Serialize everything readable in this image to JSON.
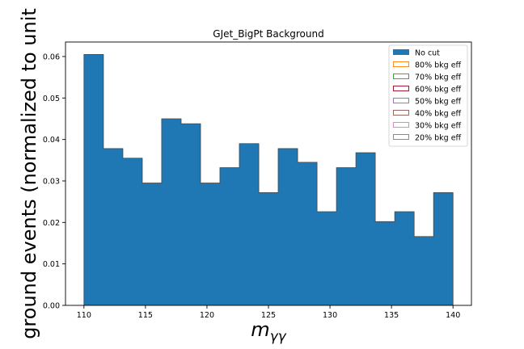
{
  "chart_data": {
    "type": "histogram",
    "title": "GJet_BigPt Background",
    "xlabel": "mγγ",
    "xlabel_parts": {
      "base": "m",
      "subscript": "γγ"
    },
    "ylabel": "ground events (normalized to unit",
    "xlim": [
      108.5,
      141.5
    ],
    "ylim": [
      0,
      0.0635
    ],
    "xticks": [
      110,
      115,
      120,
      125,
      130,
      135,
      140
    ],
    "xtick_labels": [
      "110",
      "115",
      "120",
      "125",
      "130",
      "135",
      "140"
    ],
    "yticks": [
      0.0,
      0.01,
      0.02,
      0.03,
      0.04,
      0.05,
      0.06
    ],
    "ytick_labels": [
      "0.00",
      "0.01",
      "0.02",
      "0.03",
      "0.04",
      "0.05",
      "0.06"
    ],
    "bin_edges": [
      110,
      111.579,
      113.158,
      114.737,
      116.316,
      117.895,
      119.474,
      121.053,
      122.632,
      124.211,
      125.789,
      127.368,
      128.947,
      130.526,
      132.105,
      133.684,
      135.263,
      136.842,
      138.421,
      140
    ],
    "series": [
      {
        "name": "No cut",
        "histtype": "filled",
        "color": "#1f77b4",
        "values": [
          0.0605,
          0.0378,
          0.0355,
          0.0295,
          0.045,
          0.0438,
          0.0295,
          0.0332,
          0.039,
          0.0272,
          0.0378,
          0.0345,
          0.0226,
          0.0332,
          0.0368,
          0.0202,
          0.0226,
          0.0166,
          0.0272
        ]
      },
      {
        "name": "80% bkg eff",
        "histtype": "step",
        "color": "#ff7f0e",
        "values": []
      },
      {
        "name": "70% bkg eff",
        "histtype": "step",
        "color": "#2ca02c",
        "values": []
      },
      {
        "name": "60% bkg eff",
        "histtype": "step",
        "color": "#a00020",
        "values": []
      },
      {
        "name": "50% bkg eff",
        "histtype": "step",
        "color": "#9467bd",
        "values": []
      },
      {
        "name": "40% bkg eff",
        "histtype": "step",
        "color": "#8c564b",
        "values": []
      },
      {
        "name": "30% bkg eff",
        "histtype": "step",
        "color": "#e377c2",
        "values": []
      },
      {
        "name": "20% bkg eff",
        "histtype": "step",
        "color": "#7f7f7f",
        "values": []
      }
    ],
    "legend_position": "top-right",
    "grid": false
  }
}
